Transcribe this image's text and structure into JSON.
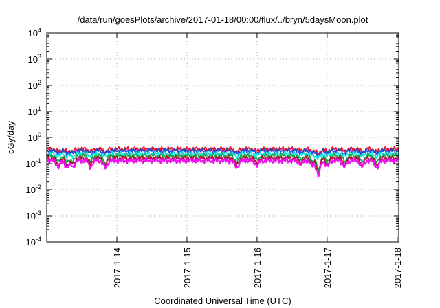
{
  "chart_data": {
    "type": "line",
    "title": "/data/run/goesPlots/archive/2017-01-18/00:00/flux/../bryn/5daysMoon.plot",
    "xlabel": "Coordinated Universal Time (UTC)",
    "ylabel": "cGy/day",
    "x_scale": "time",
    "y_scale": "log",
    "xlim": [
      "2017-01-13T00:00",
      "2017-01-18T00:30"
    ],
    "ylim": [
      0.0001,
      10000
    ],
    "x_ticks": [
      "2017-1-14",
      "2017-1-15",
      "2017-1-16",
      "2017-1-17",
      "2017-1-18"
    ],
    "y_ticks": [
      {
        "base": "10",
        "exp": "-4"
      },
      {
        "base": "10",
        "exp": "-3"
      },
      {
        "base": "10",
        "exp": "-2"
      },
      {
        "base": "10",
        "exp": "-1"
      },
      {
        "base": "10",
        "exp": "0"
      },
      {
        "base": "10",
        "exp": "1"
      },
      {
        "base": "10",
        "exp": "2"
      },
      {
        "base": "10",
        "exp": "3"
      },
      {
        "base": "10",
        "exp": "4"
      }
    ],
    "grid": true,
    "legend": "none",
    "series": [
      {
        "color": "#e8192c",
        "level": 0.36
      },
      {
        "color": "#2a4bd7",
        "level": 0.31
      },
      {
        "color": "#16e3e3",
        "level": 0.24
      },
      {
        "color": "#1fa34a",
        "level": 0.2
      },
      {
        "color": "#b3123a",
        "level": 0.16
      },
      {
        "color": "#ee11ee",
        "level": 0.13
      }
    ],
    "dips": [
      {
        "time": "2017-01-13T04:00",
        "factor": 0.55
      },
      {
        "time": "2017-01-13T07:00",
        "factor": 0.5
      },
      {
        "time": "2017-01-13T09:00",
        "factor": 0.55
      },
      {
        "time": "2017-01-13T15:00",
        "factor": 0.55
      },
      {
        "time": "2017-01-13T20:00",
        "factor": 0.5
      },
      {
        "time": "2017-01-15T17:00",
        "factor": 0.5
      },
      {
        "time": "2017-01-16T00:00",
        "factor": 0.65
      },
      {
        "time": "2017-01-16T15:00",
        "factor": 0.7
      },
      {
        "time": "2017-01-16T19:00",
        "factor": 0.6
      },
      {
        "time": "2017-01-16T21:00",
        "factor": 0.2
      },
      {
        "time": "2017-01-17T00:00",
        "factor": 0.55
      },
      {
        "time": "2017-01-17T06:00",
        "factor": 0.55
      },
      {
        "time": "2017-01-17T12:00",
        "factor": 0.55
      },
      {
        "time": "2017-01-17T17:00",
        "factor": 0.5
      }
    ]
  }
}
